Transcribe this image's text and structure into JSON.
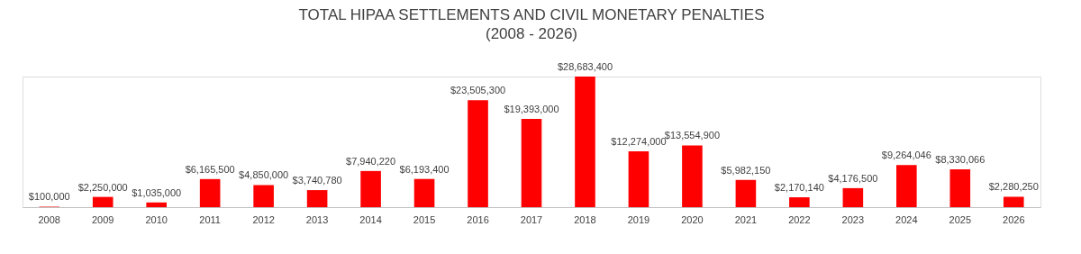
{
  "chart_data": {
    "type": "bar",
    "title": "TOTAL HIPAA SETTLEMENTS AND CIVIL MONETARY PENALTIES",
    "subtitle": "(2008 - 2026)",
    "categories": [
      "2008",
      "2009",
      "2010",
      "2011",
      "2012",
      "2013",
      "2014",
      "2015",
      "2016",
      "2017",
      "2018",
      "2019",
      "2020",
      "2021",
      "2022",
      "2023",
      "2024",
      "2025",
      "2026"
    ],
    "values": [
      100000,
      2250000,
      1035000,
      6165500,
      4850000,
      3740780,
      7940220,
      6193400,
      23505300,
      19393000,
      28683400,
      12274000,
      13554900,
      5982150,
      2170140,
      4176500,
      9264046,
      8330066,
      2280250
    ],
    "value_labels": [
      "$100,000",
      "$2,250,000",
      "$1,035,000",
      "$6,165,500",
      "$4,850,000",
      "$3,740,780",
      "$7,940,220",
      "$6,193,400",
      "$23,505,300",
      "$19,393,000",
      "$28,683,400",
      "$12,274,000",
      "$13,554,900",
      "$5,982,150",
      "$2,170,140",
      "$4,176,500",
      "$9,264,046",
      "$8,330,066",
      "$2,280,250"
    ],
    "color": "#ff0000",
    "tick_labels": "x",
    "grid": false
  }
}
